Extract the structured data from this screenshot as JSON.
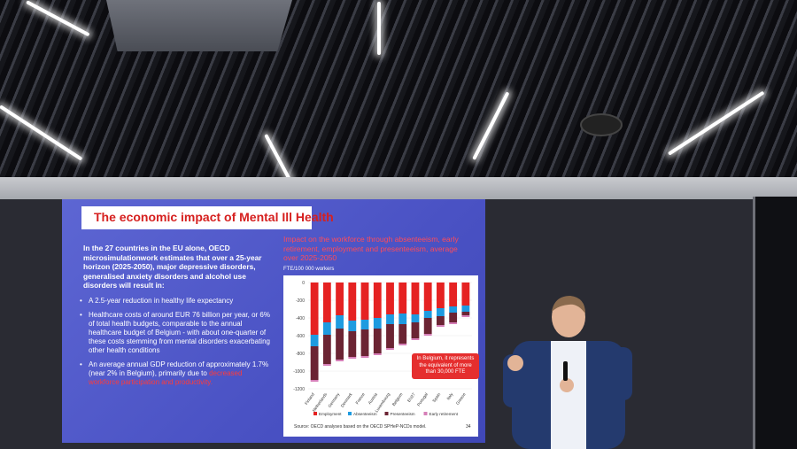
{
  "slide": {
    "title": "The economic impact of Mental Ill Health",
    "intro": "In the 27 countries in the EU alone, OECD microsimulationwork estimates that over a 25-year horizon (2025-2050), major depressive disorders, generalised anxiety disorders and alcohol use disorders will result in:",
    "bullets": [
      {
        "text": "A 2.5-year reduction in healthy life expectancy",
        "highlight": ""
      },
      {
        "text": "Healthcare costs of around EUR 76 billion per year, or 6% of total health budgets, comparable to the annual healthcare budget of Belgium - with about one-quarter of these costs stemming from mental disorders exacerbating other health conditions",
        "highlight": ""
      },
      {
        "text": "An average annual GDP reduction of approximately 1.7% (near 2% in Belgium), primarily due to ",
        "highlight": "decreased workforce participation and productivity."
      }
    ],
    "chart_title": "Impact on the workforce through absenteeism, early retirement, employment and presenteeism, average over 2025-2050",
    "unit_label": "FTE/100 000 workers",
    "callout": "In Belgium, it represents the equivalent of more than 30,000 FTE",
    "source": "Source: OECD analyses based on the OECD SPHeP-NCDs model.",
    "page_number": "34"
  },
  "colors": {
    "employment": "#e52222",
    "absenteeism": "#1e9be0",
    "presenteeism": "#6b2433",
    "early_retirement": "#d67fb8",
    "slide_bg": "#5058c8",
    "title_red": "#d6201f"
  },
  "chart_data": {
    "type": "bar",
    "stacked": true,
    "categories": [
      "Finland",
      "Netherlands",
      "Germany",
      "Denmark",
      "France",
      "Austria",
      "Luxembourg",
      "Belgium",
      "EU27",
      "Portugal",
      "Spain",
      "Italy",
      "Greece"
    ],
    "series": [
      {
        "name": "Employment",
        "values": [
          -590,
          -450,
          -370,
          -430,
          -420,
          -400,
          -360,
          -350,
          -360,
          -320,
          -290,
          -270,
          -260
        ]
      },
      {
        "name": "Absenteeism",
        "values": [
          -130,
          -140,
          -150,
          -120,
          -110,
          -120,
          -110,
          -120,
          -90,
          -80,
          -90,
          -70,
          -70
        ]
      },
      {
        "name": "Presenteeism",
        "values": [
          -380,
          -330,
          -350,
          -290,
          -300,
          -280,
          -270,
          -220,
          -180,
          -180,
          -100,
          -110,
          -40
        ]
      },
      {
        "name": "Early retirement",
        "values": [
          -20,
          -20,
          -20,
          -20,
          -20,
          -20,
          -20,
          -20,
          -20,
          -20,
          -20,
          -20,
          -20
        ]
      }
    ],
    "yticks": [
      0,
      -200,
      -400,
      -600,
      -800,
      -1000,
      -1200
    ],
    "ylim": [
      -1200,
      0
    ]
  },
  "presenter": {
    "shirt": "#eef1f7",
    "jacket": "#243a6e"
  }
}
